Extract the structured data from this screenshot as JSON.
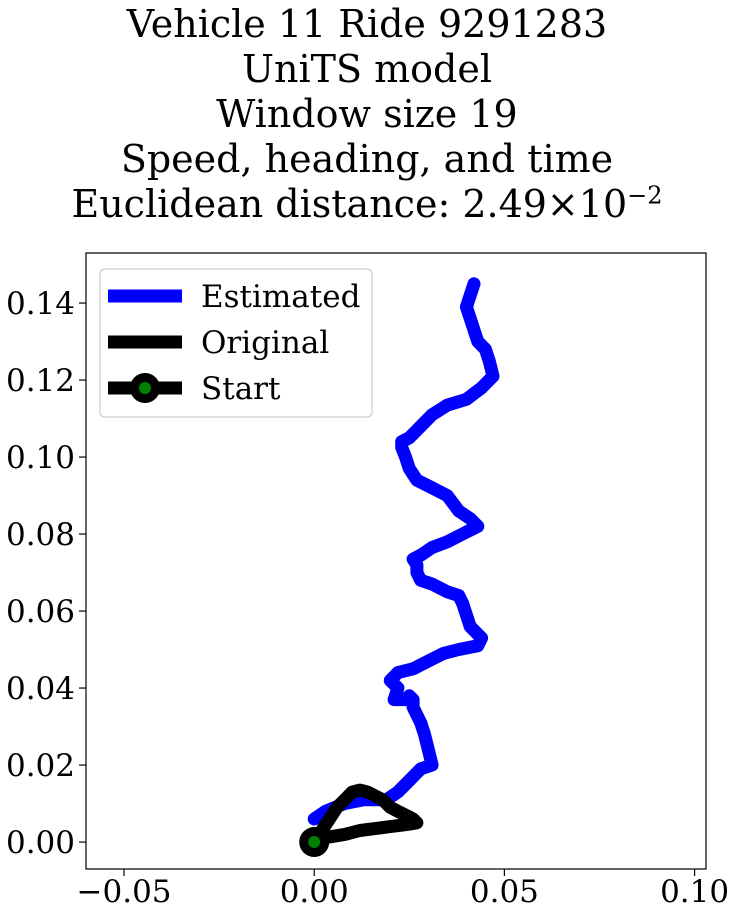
{
  "chart_data": {
    "type": "line",
    "title_lines": [
      "Vehicle 11 Ride 9291283",
      "UniTS model",
      "Window size 19",
      "Speed, heading, and time"
    ],
    "title_distance_prefix": "Euclidean distance: 2.49×10",
    "title_distance_exponent": "−2",
    "xlabel": "",
    "ylabel": "",
    "xlim": [
      -0.06,
      0.103
    ],
    "ylim": [
      -0.007,
      0.153
    ],
    "x_ticks": [
      -0.05,
      0.0,
      0.05,
      0.1
    ],
    "x_tick_labels": [
      "−0.05",
      "0.00",
      "0.05",
      "0.10"
    ],
    "y_ticks": [
      0.0,
      0.02,
      0.04,
      0.06,
      0.08,
      0.1,
      0.12,
      0.14
    ],
    "y_tick_labels": [
      "0.00",
      "0.02",
      "0.04",
      "0.06",
      "0.08",
      "0.10",
      "0.12",
      "0.14"
    ],
    "grid": false,
    "legend_position": "top-left",
    "legend": [
      {
        "label": "Estimated",
        "color": "#0000ff",
        "marker": "none"
      },
      {
        "label": "Original",
        "color": "#000000",
        "marker": "none"
      },
      {
        "label": "Start",
        "color": "#000000",
        "marker": "circle",
        "marker_fill": "#008000"
      }
    ],
    "series": [
      {
        "name": "Estimated",
        "color": "#0000ff",
        "x": [
          0.0,
          0.003,
          0.008,
          0.013,
          0.019,
          0.022,
          0.025,
          0.028,
          0.031,
          0.03,
          0.029,
          0.028,
          0.027,
          0.026,
          0.026,
          0.025,
          0.024,
          0.021,
          0.022,
          0.02,
          0.022,
          0.026,
          0.03,
          0.034,
          0.038,
          0.043,
          0.044,
          0.041,
          0.04,
          0.039,
          0.038,
          0.035,
          0.031,
          0.028,
          0.027,
          0.027,
          0.026,
          0.028,
          0.031,
          0.035,
          0.039,
          0.043,
          0.041,
          0.038,
          0.035,
          0.031,
          0.027,
          0.025,
          0.024,
          0.023,
          0.023,
          0.025,
          0.028,
          0.031,
          0.035,
          0.04,
          0.044,
          0.047,
          0.046,
          0.045,
          0.043,
          0.042,
          0.041,
          0.04,
          0.041,
          0.042
        ],
        "y": [
          0.006,
          0.008,
          0.01,
          0.011,
          0.011,
          0.013,
          0.016,
          0.019,
          0.02,
          0.024,
          0.028,
          0.031,
          0.033,
          0.035,
          0.037,
          0.038,
          0.037,
          0.037,
          0.04,
          0.042,
          0.044,
          0.045,
          0.047,
          0.049,
          0.05,
          0.051,
          0.053,
          0.056,
          0.059,
          0.062,
          0.064,
          0.065,
          0.067,
          0.068,
          0.07,
          0.072,
          0.0735,
          0.0745,
          0.0765,
          0.078,
          0.08,
          0.082,
          0.084,
          0.086,
          0.09,
          0.092,
          0.094,
          0.097,
          0.1,
          0.1025,
          0.104,
          0.105,
          0.108,
          0.111,
          0.1135,
          0.115,
          0.118,
          0.121,
          0.125,
          0.128,
          0.13,
          0.133,
          0.136,
          0.139,
          0.142,
          0.145
        ]
      },
      {
        "name": "Original",
        "color": "#000000",
        "x": [
          0.0,
          0.002,
          0.004,
          0.006,
          0.008,
          0.01,
          0.012,
          0.014,
          0.016,
          0.018,
          0.02,
          0.022,
          0.024,
          0.026,
          0.027,
          0.024,
          0.02,
          0.016,
          0.012,
          0.008,
          0.005,
          0.002,
          0.0
        ],
        "y": [
          0.0,
          0.003,
          0.006,
          0.009,
          0.011,
          0.013,
          0.0135,
          0.013,
          0.012,
          0.011,
          0.009,
          0.008,
          0.007,
          0.006,
          0.005,
          0.0045,
          0.004,
          0.0035,
          0.003,
          0.002,
          0.0015,
          0.001,
          0.0
        ]
      }
    ],
    "start_point": {
      "x": 0.0,
      "y": 0.0
    }
  }
}
